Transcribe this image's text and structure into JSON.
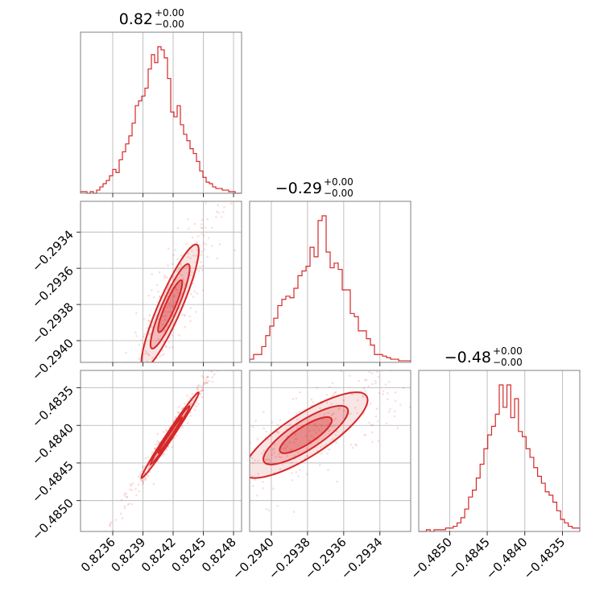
{
  "chart_data": {
    "type": "corner",
    "color": "#d62728",
    "variables": [
      {
        "title_value": "0.82",
        "err_plus": "+0.00",
        "err_minus": "−0.00",
        "range": [
          0.82328,
          0.82488
        ],
        "ticks": [
          0.8236,
          0.8239,
          0.8242,
          0.8245,
          0.8248
        ],
        "tick_labels": [
          "0.8236",
          "0.8239",
          "0.8242",
          "0.8245",
          "0.8248"
        ],
        "hist_bins": [
          0.01,
          0.01,
          0.0,
          0.01,
          0.0,
          0.02,
          0.04,
          0.06,
          0.08,
          0.11,
          0.15,
          0.13,
          0.21,
          0.26,
          0.31,
          0.36,
          0.44,
          0.55,
          0.58,
          0.61,
          0.66,
          0.78,
          0.87,
          0.82,
          0.92,
          0.9,
          0.85,
          0.72,
          0.51,
          0.48,
          0.55,
          0.43,
          0.37,
          0.33,
          0.28,
          0.25,
          0.2,
          0.14,
          0.1,
          0.07,
          0.06,
          0.04,
          0.03,
          0.03,
          0.02,
          0.02,
          0.01,
          0.01,
          0.0,
          0.0
        ]
      },
      {
        "title_value": "−0.29",
        "err_plus": "+0.00",
        "err_minus": "−0.00",
        "range": [
          -0.29412,
          -0.29323
        ],
        "ticks": [
          -0.294,
          -0.2938,
          -0.2936,
          -0.2934
        ],
        "tick_labels": [
          "−0.2940",
          "−0.2938",
          "−0.2936",
          "−0.2934"
        ],
        "hist_bins": [
          0.02,
          0.05,
          0.05,
          0.1,
          0.17,
          0.23,
          0.28,
          0.36,
          0.4,
          0.42,
          0.41,
          0.47,
          0.55,
          0.58,
          0.61,
          0.73,
          0.67,
          0.9,
          0.93,
          0.7,
          0.6,
          0.63,
          0.59,
          0.46,
          0.46,
          0.31,
          0.29,
          0.2,
          0.2,
          0.15,
          0.11,
          0.05,
          0.05,
          0.04,
          0.03,
          0.02,
          0.02,
          0.01,
          0.01,
          0.01
        ]
      },
      {
        "title_value": "−0.48",
        "err_plus": "+0.00",
        "err_minus": "−0.00",
        "range": [
          -0.48541,
          -0.48327
        ],
        "ticks": [
          -0.485,
          -0.4845,
          -0.484,
          -0.4835
        ],
        "tick_labels": [
          "−0.4850",
          "−0.4845",
          "−0.4840",
          "−0.4835"
        ],
        "hist_bins": [
          0.0,
          0.0,
          0.01,
          0.0,
          0.01,
          0.01,
          0.01,
          0.02,
          0.02,
          0.03,
          0.05,
          0.08,
          0.13,
          0.2,
          0.24,
          0.31,
          0.39,
          0.48,
          0.56,
          0.61,
          0.68,
          0.85,
          0.72,
          0.85,
          0.66,
          0.77,
          0.58,
          0.55,
          0.48,
          0.43,
          0.37,
          0.32,
          0.28,
          0.23,
          0.21,
          0.17,
          0.12,
          0.07,
          0.05,
          0.03,
          0.02,
          0.02
        ]
      }
    ],
    "pairs": [
      {
        "x_var": 0,
        "y_var": 1,
        "center": [
          0.82417,
          -0.29381
        ],
        "spread": [
          0.00015,
          0.00018
        ],
        "rho": 0.9
      },
      {
        "x_var": 0,
        "y_var": 2,
        "center": [
          0.82417,
          -0.48413
        ],
        "spread": [
          0.00015,
          0.0003
        ],
        "rho": 0.99
      },
      {
        "x_var": 1,
        "y_var": 2,
        "center": [
          -0.29381,
          -0.48413
        ],
        "spread": [
          0.00018,
          0.0003
        ],
        "rho": 0.82
      }
    ],
    "contour_levels": [
      0.8,
      1.3,
      1.9
    ]
  }
}
